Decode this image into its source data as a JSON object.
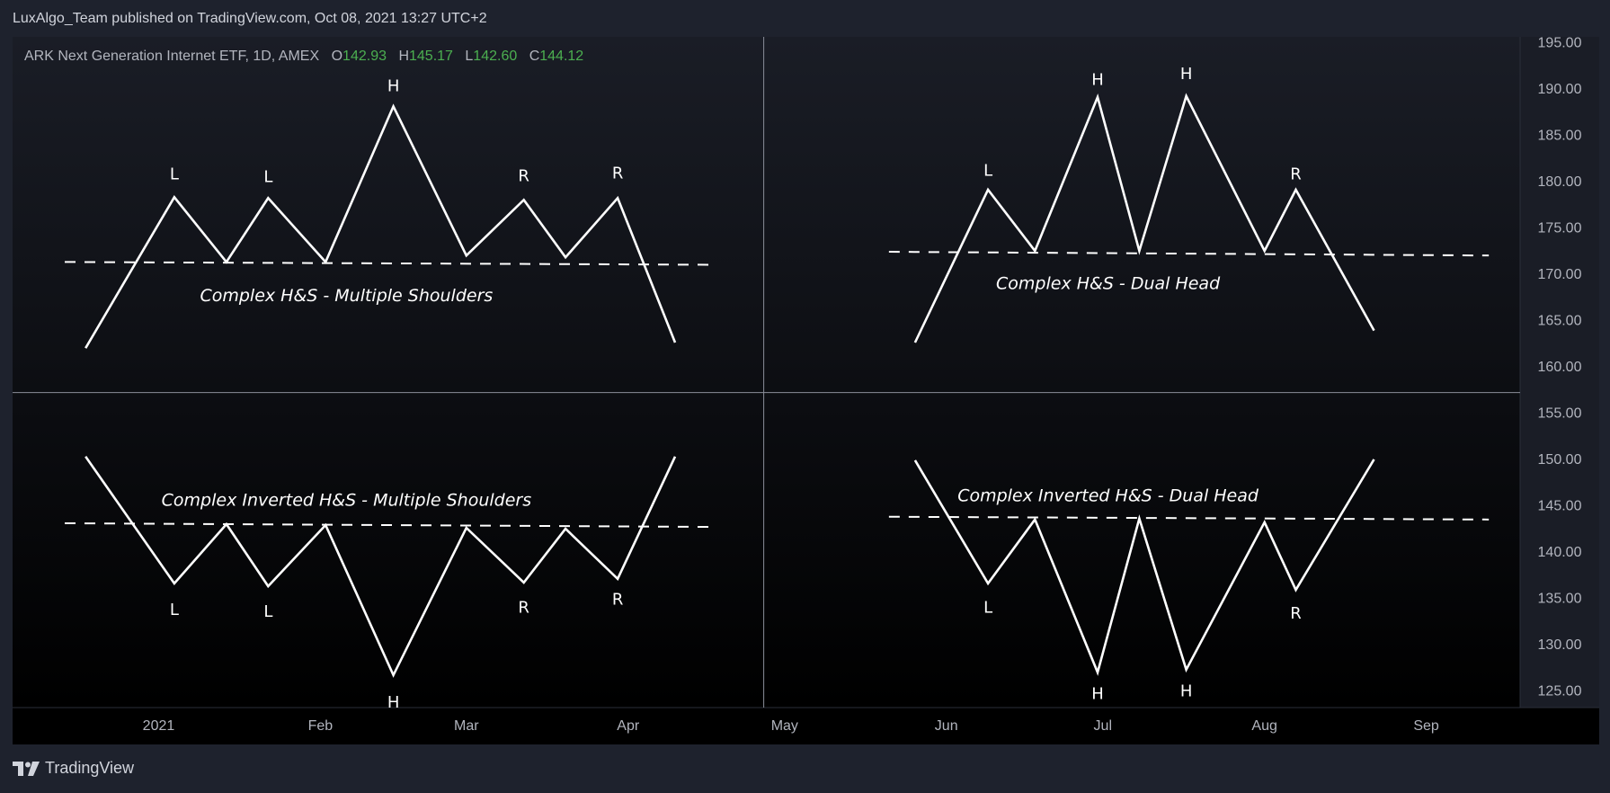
{
  "header": {
    "published": "LuxAlgo_Team published on TradingView.com, Oct 08, 2021 13:27 UTC+2"
  },
  "legend": {
    "symbol": "ARK Next Generation Internet ETF, 1D, AMEX",
    "o_label": "O",
    "o": "142.93",
    "h_label": "H",
    "h": "145.17",
    "l_label": "L",
    "l": "142.60",
    "c_label": "C",
    "c": "144.12",
    "value_color": "#4caf50"
  },
  "footer": {
    "brand": "TradingView",
    "logo_icon": "tradingview-logo-icon"
  },
  "chart_data": {
    "type": "line",
    "x_axis": {
      "labels": [
        "2021",
        "Feb",
        "Mar",
        "Apr",
        "May",
        "Jun",
        "Jul",
        "Aug",
        "Sep"
      ],
      "positions": [
        "2021-01-01",
        "2021-02-01",
        "2021-03-01",
        "2021-04-01",
        "2021-05-01",
        "2021-06-01",
        "2021-07-01",
        "2021-08-01",
        "2021-09-01"
      ],
      "range": [
        "2020-12-04",
        "2021-09-19"
      ]
    },
    "y_axis": {
      "ticks": [
        "195.00",
        "190.00",
        "185.00",
        "180.00",
        "175.00",
        "170.00",
        "165.00",
        "160.00",
        "155.00",
        "150.00",
        "145.00",
        "140.00",
        "135.00",
        "130.00",
        "125.00"
      ],
      "range": [
        123.3,
        195.7
      ],
      "position": "right"
    },
    "dividers": {
      "vertical_date": "2021-04-27",
      "horizontal_price": 157.3
    },
    "line_color": "#ffffff",
    "patterns": [
      {
        "label": "Complex H&S - Multiple Shoulders",
        "label_at": [
          "2021-02-06",
          167.7
        ],
        "points": [
          [
            "2020-12-18",
            162.1
          ],
          [
            "2021-01-04",
            178.4
          ],
          [
            "2021-01-14",
            171.4
          ],
          [
            "2021-01-22",
            178.3
          ],
          [
            "2021-02-02",
            171.4
          ],
          [
            "2021-02-15",
            188.2
          ],
          [
            "2021-03-01",
            172.1
          ],
          [
            "2021-03-12",
            178.1
          ],
          [
            "2021-03-20",
            171.9
          ],
          [
            "2021-03-30",
            178.3
          ],
          [
            "2021-04-10",
            162.7
          ]
        ],
        "neckline": [
          [
            "2020-12-14",
            171.4
          ],
          [
            "2021-04-17",
            171.1
          ]
        ],
        "marks": [
          {
            "text": "L",
            "at": [
              "2021-01-04",
              180.8
            ]
          },
          {
            "text": "L",
            "at": [
              "2021-01-22",
              180.5
            ]
          },
          {
            "text": "H",
            "at": [
              "2021-02-15",
              190.3
            ]
          },
          {
            "text": "R",
            "at": [
              "2021-03-12",
              180.6
            ]
          },
          {
            "text": "R",
            "at": [
              "2021-03-30",
              180.9
            ]
          }
        ]
      },
      {
        "label": "Complex H&S - Dual Head",
        "label_at": [
          "2021-07-02",
          169.0
        ],
        "points": [
          [
            "2021-05-26",
            162.7
          ],
          [
            "2021-06-09",
            179.2
          ],
          [
            "2021-06-18",
            172.6
          ],
          [
            "2021-06-30",
            189.2
          ],
          [
            "2021-07-08",
            172.6
          ],
          [
            "2021-07-17",
            189.3
          ],
          [
            "2021-08-01",
            172.6
          ],
          [
            "2021-08-07",
            179.2
          ],
          [
            "2021-08-22",
            164.0
          ]
        ],
        "neckline": [
          [
            "2021-05-21",
            172.5
          ],
          [
            "2021-09-13",
            172.1
          ]
        ],
        "marks": [
          {
            "text": "L",
            "at": [
              "2021-06-09",
              181.2
            ]
          },
          {
            "text": "H",
            "at": [
              "2021-06-30",
              191.0
            ]
          },
          {
            "text": "H",
            "at": [
              "2021-07-17",
              191.6
            ]
          },
          {
            "text": "R",
            "at": [
              "2021-08-07",
              180.8
            ]
          }
        ]
      },
      {
        "label": "Complex Inverted H&S - Multiple Shoulders",
        "label_at": [
          "2021-02-06",
          145.6
        ],
        "points": [
          [
            "2020-12-18",
            150.4
          ],
          [
            "2021-01-04",
            136.7
          ],
          [
            "2021-01-14",
            143.1
          ],
          [
            "2021-01-22",
            136.4
          ],
          [
            "2021-02-02",
            143.0
          ],
          [
            "2021-02-15",
            126.8
          ],
          [
            "2021-03-01",
            142.7
          ],
          [
            "2021-03-12",
            136.8
          ],
          [
            "2021-03-20",
            142.6
          ],
          [
            "2021-03-30",
            137.2
          ],
          [
            "2021-04-10",
            150.4
          ]
        ],
        "neckline": [
          [
            "2020-12-14",
            143.2
          ],
          [
            "2021-04-17",
            142.8
          ]
        ],
        "marks": [
          {
            "text": "L",
            "at": [
              "2021-01-04",
              133.8
            ]
          },
          {
            "text": "L",
            "at": [
              "2021-01-22",
              133.6
            ]
          },
          {
            "text": "H",
            "at": [
              "2021-02-15",
              123.8
            ]
          },
          {
            "text": "R",
            "at": [
              "2021-03-12",
              134.0
            ]
          },
          {
            "text": "R",
            "at": [
              "2021-03-30",
              134.9
            ]
          }
        ]
      },
      {
        "label": "Complex Inverted H&S - Dual Head",
        "label_at": [
          "2021-07-02",
          146.1
        ],
        "points": [
          [
            "2021-05-26",
            150.0
          ],
          [
            "2021-06-09",
            136.7
          ],
          [
            "2021-06-18",
            143.6
          ],
          [
            "2021-06-30",
            127.1
          ],
          [
            "2021-07-08",
            143.7
          ],
          [
            "2021-07-17",
            127.4
          ],
          [
            "2021-08-01",
            143.3
          ],
          [
            "2021-08-07",
            136.0
          ],
          [
            "2021-08-22",
            150.1
          ]
        ],
        "neckline": [
          [
            "2021-05-21",
            143.9
          ],
          [
            "2021-09-13",
            143.6
          ]
        ],
        "marks": [
          {
            "text": "L",
            "at": [
              "2021-06-09",
              134.0
            ]
          },
          {
            "text": "H",
            "at": [
              "2021-06-30",
              124.7
            ]
          },
          {
            "text": "H",
            "at": [
              "2021-07-17",
              125.0
            ]
          },
          {
            "text": "R",
            "at": [
              "2021-08-07",
              133.4
            ]
          }
        ]
      }
    ]
  }
}
